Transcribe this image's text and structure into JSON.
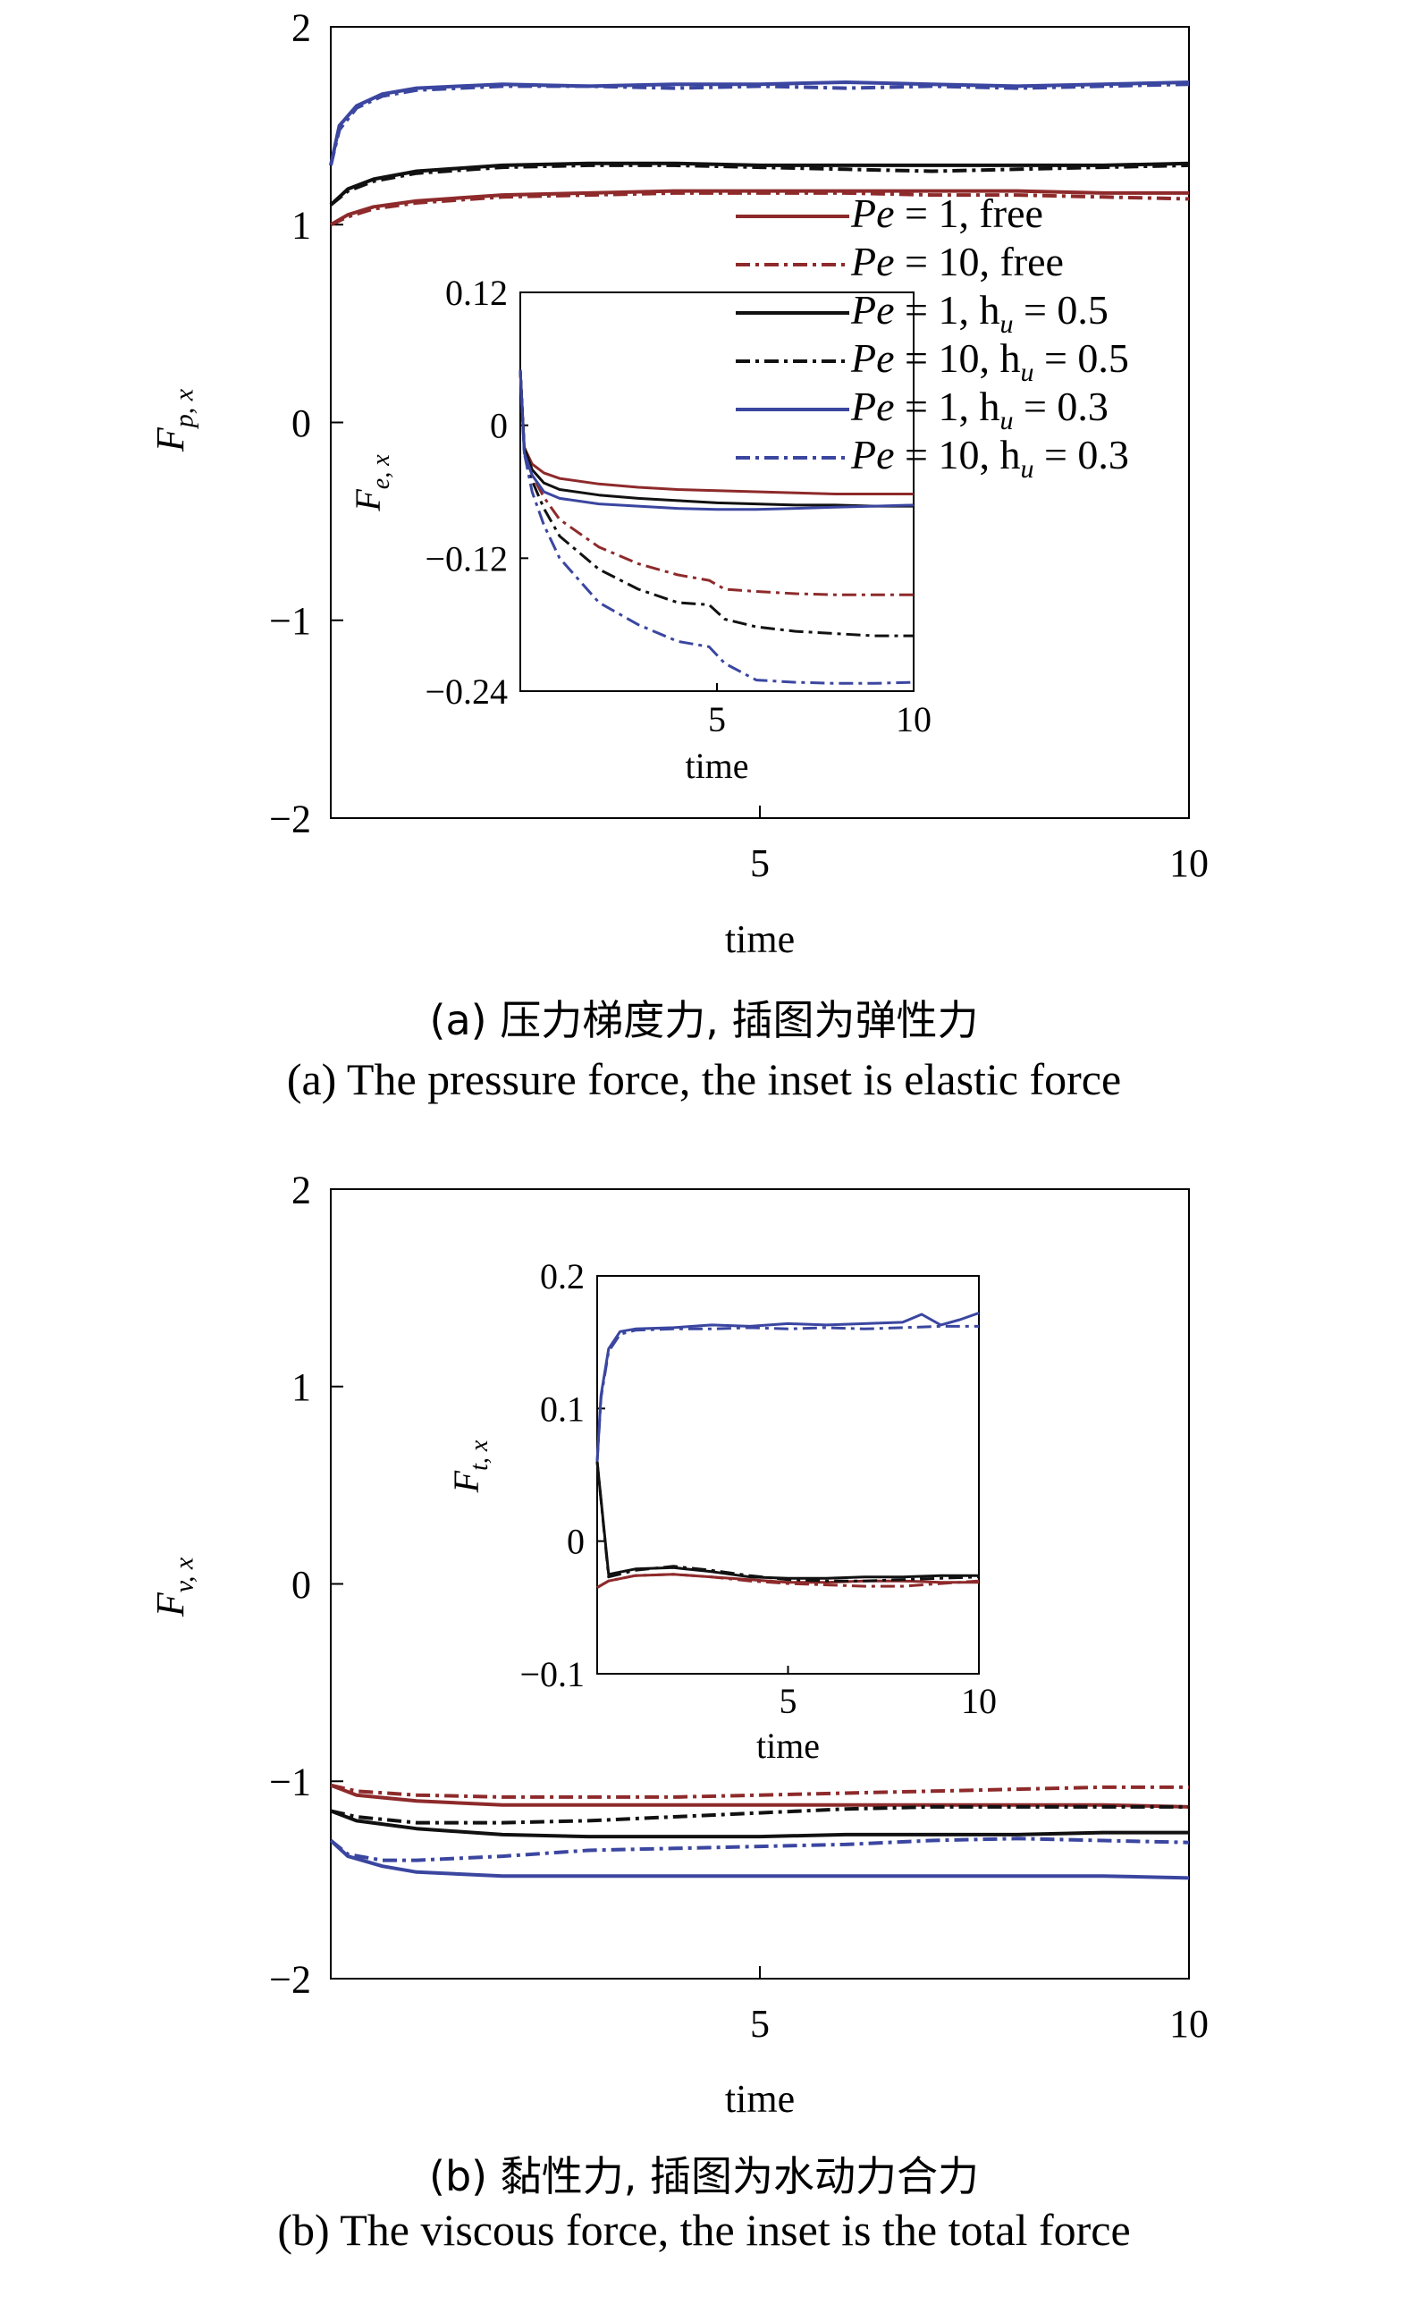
{
  "captions": {
    "a_cn": "(a) 压力梯度力, 插图为弹性力",
    "a_en": "(a) The pressure force, the inset is elastic force",
    "b_cn": "(b) 黏性力, 插图为水动力合力",
    "b_en": "(b) The viscous force, the inset is the total force"
  },
  "legend": [
    {
      "prefix": "Pe",
      "text": " = 1, free",
      "sub": "",
      "tail": "",
      "color": "#8e2a2b",
      "dash": "solid"
    },
    {
      "prefix": "Pe",
      "text": " = 10, free",
      "sub": "",
      "tail": "",
      "color": "#8e2a2b",
      "dash": "dashdot"
    },
    {
      "prefix": "Pe",
      "text": " = 1, h",
      "sub": "u",
      "tail": " = 0.5",
      "color": "#111111",
      "dash": "solid"
    },
    {
      "prefix": "Pe",
      "text": " = 10, h",
      "sub": "u",
      "tail": " = 0.5",
      "color": "#111111",
      "dash": "dashdot"
    },
    {
      "prefix": "Pe",
      "text": " = 1, h",
      "sub": "u",
      "tail": " = 0.3",
      "color": "#3b46a0",
      "dash": "solid"
    },
    {
      "prefix": "Pe",
      "text": " = 10, h",
      "sub": "u",
      "tail": " = 0.3",
      "color": "#3b46a0",
      "dash": "dashdot"
    }
  ],
  "chart_data": [
    {
      "id": "a-main",
      "type": "line",
      "ylabel": "F",
      "ylabel_sub": "p, x",
      "xlabel": "time",
      "xlim": [
        0,
        10
      ],
      "ylim": [
        -2,
        2
      ],
      "xticks": [
        5,
        10
      ],
      "yticks": [
        2,
        1,
        0,
        -1,
        -2
      ],
      "series": [
        {
          "name": "Pe = 1, free",
          "color": "#8e2a2b",
          "dash": "solid",
          "x": [
            0,
            0.2,
            0.5,
            1,
            2,
            3,
            4,
            5,
            6,
            7,
            8,
            9,
            10
          ],
          "y": [
            1.0,
            1.05,
            1.09,
            1.12,
            1.15,
            1.16,
            1.17,
            1.17,
            1.17,
            1.17,
            1.17,
            1.16,
            1.16
          ]
        },
        {
          "name": "Pe = 10, free",
          "color": "#8e2a2b",
          "dash": "dashdot",
          "x": [
            0,
            0.2,
            0.5,
            1,
            2,
            3,
            4,
            5,
            6,
            7,
            8,
            9,
            10
          ],
          "y": [
            1.0,
            1.04,
            1.08,
            1.11,
            1.14,
            1.15,
            1.16,
            1.16,
            1.16,
            1.15,
            1.15,
            1.14,
            1.13
          ]
        },
        {
          "name": "Pe = 1, hu = 0.5",
          "color": "#111111",
          "dash": "solid",
          "x": [
            0,
            0.2,
            0.5,
            1,
            2,
            3,
            4,
            5,
            6,
            7,
            8,
            9,
            10
          ],
          "y": [
            1.1,
            1.18,
            1.23,
            1.27,
            1.3,
            1.31,
            1.31,
            1.3,
            1.3,
            1.3,
            1.3,
            1.3,
            1.31
          ]
        },
        {
          "name": "Pe = 10, hu = 0.5",
          "color": "#111111",
          "dash": "dashdot",
          "x": [
            0,
            0.2,
            0.5,
            1,
            2,
            3,
            4,
            5,
            6,
            7,
            8,
            9,
            10
          ],
          "y": [
            1.1,
            1.17,
            1.22,
            1.26,
            1.29,
            1.3,
            1.3,
            1.29,
            1.28,
            1.27,
            1.28,
            1.29,
            1.3
          ]
        },
        {
          "name": "Pe = 1, hu = 0.3",
          "color": "#3b46a0",
          "dash": "solid",
          "x": [
            0,
            0.1,
            0.3,
            0.6,
            1,
            1.5,
            2,
            3,
            4,
            5,
            6,
            7,
            8,
            9,
            10
          ],
          "y": [
            1.3,
            1.5,
            1.6,
            1.66,
            1.69,
            1.7,
            1.71,
            1.7,
            1.71,
            1.71,
            1.72,
            1.71,
            1.7,
            1.71,
            1.72
          ]
        },
        {
          "name": "Pe = 10, hu = 0.3",
          "color": "#3b46a0",
          "dash": "dashdot",
          "x": [
            0,
            0.1,
            0.3,
            0.6,
            1,
            1.5,
            2,
            3,
            4,
            5,
            6,
            7,
            8,
            9,
            10
          ],
          "y": [
            1.3,
            1.48,
            1.59,
            1.65,
            1.68,
            1.69,
            1.7,
            1.7,
            1.69,
            1.7,
            1.69,
            1.7,
            1.69,
            1.7,
            1.71
          ]
        }
      ]
    },
    {
      "id": "a-inset",
      "type": "line",
      "ylabel": "F",
      "ylabel_sub": "e, x",
      "xlabel": "time",
      "xlim": [
        0,
        10
      ],
      "ylim": [
        -0.24,
        0.12
      ],
      "xticks": [
        5,
        10
      ],
      "yticks": [
        "0.12",
        "0",
        "−0.12",
        "−0.24"
      ],
      "ytick_values": [
        0.12,
        0,
        -0.12,
        -0.24
      ],
      "series": [
        {
          "name": "Pe = 1, free",
          "color": "#8e2a2b",
          "dash": "solid",
          "x": [
            0,
            0.1,
            0.3,
            0.6,
            1,
            2,
            3,
            4,
            5,
            6,
            7,
            8,
            9,
            10
          ],
          "y": [
            0.05,
            -0.02,
            -0.035,
            -0.043,
            -0.048,
            -0.053,
            -0.056,
            -0.058,
            -0.059,
            -0.06,
            -0.061,
            -0.062,
            -0.062,
            -0.062
          ]
        },
        {
          "name": "Pe = 10, free",
          "color": "#8e2a2b",
          "dash": "dashdot",
          "x": [
            0,
            0.1,
            0.3,
            0.6,
            1,
            2,
            3,
            4,
            4.8,
            5.2,
            6,
            7,
            8,
            9,
            10
          ],
          "y": [
            0.05,
            -0.02,
            -0.045,
            -0.065,
            -0.085,
            -0.11,
            -0.125,
            -0.135,
            -0.14,
            -0.148,
            -0.15,
            -0.152,
            -0.153,
            -0.153,
            -0.153
          ]
        },
        {
          "name": "Pe = 1, hu = 0.5",
          "color": "#111111",
          "dash": "solid",
          "x": [
            0,
            0.1,
            0.3,
            0.6,
            1,
            2,
            3,
            4,
            5,
            6,
            7,
            8,
            9,
            10
          ],
          "y": [
            0.05,
            -0.02,
            -0.04,
            -0.052,
            -0.058,
            -0.063,
            -0.066,
            -0.068,
            -0.07,
            -0.071,
            -0.072,
            -0.072,
            -0.073,
            -0.073
          ]
        },
        {
          "name": "Pe = 10, hu = 0.5",
          "color": "#111111",
          "dash": "dashdot",
          "x": [
            0,
            0.1,
            0.3,
            0.6,
            1,
            2,
            3,
            4,
            4.8,
            5.2,
            6,
            7,
            8,
            9,
            10
          ],
          "y": [
            0.05,
            -0.02,
            -0.05,
            -0.075,
            -0.1,
            -0.13,
            -0.148,
            -0.16,
            -0.162,
            -0.175,
            -0.182,
            -0.186,
            -0.188,
            -0.19,
            -0.19
          ]
        },
        {
          "name": "Pe = 1, hu = 0.3",
          "color": "#3b46a0",
          "dash": "solid",
          "x": [
            0,
            0.1,
            0.3,
            0.6,
            1,
            2,
            3,
            4,
            5,
            6,
            7,
            8,
            9,
            10
          ],
          "y": [
            0.05,
            -0.025,
            -0.045,
            -0.06,
            -0.066,
            -0.071,
            -0.073,
            -0.075,
            -0.076,
            -0.076,
            -0.075,
            -0.074,
            -0.073,
            -0.072
          ]
        },
        {
          "name": "Pe = 10, hu = 0.3",
          "color": "#3b46a0",
          "dash": "dashdot",
          "x": [
            0,
            0.1,
            0.3,
            0.6,
            1,
            2,
            3,
            4,
            4.8,
            5.2,
            6,
            7,
            8,
            9,
            10
          ],
          "y": [
            0.05,
            -0.025,
            -0.06,
            -0.09,
            -0.12,
            -0.16,
            -0.18,
            -0.195,
            -0.2,
            -0.215,
            -0.23,
            -0.232,
            -0.233,
            -0.233,
            -0.232
          ]
        }
      ]
    },
    {
      "id": "b-main",
      "type": "line",
      "ylabel": "F",
      "ylabel_sub": "v, x",
      "xlabel": "time",
      "xlim": [
        0,
        10
      ],
      "ylim": [
        -2,
        2
      ],
      "xticks": [
        5,
        10
      ],
      "yticks": [
        2,
        1,
        0,
        -1,
        -2
      ],
      "series": [
        {
          "name": "Pe = 1, free",
          "color": "#8e2a2b",
          "dash": "solid",
          "x": [
            0,
            0.3,
            1,
            2,
            3,
            4,
            5,
            6,
            7,
            8,
            9,
            10
          ],
          "y": [
            -1.02,
            -1.07,
            -1.1,
            -1.12,
            -1.12,
            -1.12,
            -1.12,
            -1.12,
            -1.12,
            -1.12,
            -1.12,
            -1.13
          ]
        },
        {
          "name": "Pe = 10, free",
          "color": "#8e2a2b",
          "dash": "dashdot",
          "x": [
            0,
            0.3,
            1,
            2,
            3,
            4,
            5,
            6,
            7,
            8,
            9,
            10
          ],
          "y": [
            -1.02,
            -1.05,
            -1.07,
            -1.08,
            -1.08,
            -1.08,
            -1.07,
            -1.06,
            -1.05,
            -1.04,
            -1.03,
            -1.03
          ]
        },
        {
          "name": "Pe = 1, hu = 0.5",
          "color": "#111111",
          "dash": "solid",
          "x": [
            0,
            0.3,
            1,
            2,
            3,
            4,
            5,
            6,
            7,
            8,
            9,
            10
          ],
          "y": [
            -1.15,
            -1.2,
            -1.24,
            -1.27,
            -1.28,
            -1.28,
            -1.28,
            -1.27,
            -1.27,
            -1.27,
            -1.26,
            -1.26
          ]
        },
        {
          "name": "Pe = 10, hu = 0.5",
          "color": "#111111",
          "dash": "dashdot",
          "x": [
            0,
            0.3,
            1,
            2,
            3,
            4,
            5,
            6,
            7,
            8,
            9,
            10
          ],
          "y": [
            -1.15,
            -1.18,
            -1.21,
            -1.21,
            -1.2,
            -1.18,
            -1.16,
            -1.14,
            -1.13,
            -1.13,
            -1.13,
            -1.13
          ]
        },
        {
          "name": "Pe = 1, hu = 0.3",
          "color": "#3b46a0",
          "dash": "solid",
          "x": [
            0,
            0.2,
            0.6,
            1,
            2,
            3,
            4,
            5,
            6,
            7,
            8,
            9,
            10
          ],
          "y": [
            -1.3,
            -1.38,
            -1.43,
            -1.46,
            -1.48,
            -1.48,
            -1.48,
            -1.48,
            -1.48,
            -1.48,
            -1.48,
            -1.48,
            -1.49
          ]
        },
        {
          "name": "Pe = 10, hu = 0.3",
          "color": "#3b46a0",
          "dash": "dashdot",
          "x": [
            0,
            0.2,
            0.6,
            1,
            2,
            3,
            4,
            5,
            6,
            7,
            8,
            9,
            10
          ],
          "y": [
            -1.3,
            -1.37,
            -1.4,
            -1.4,
            -1.38,
            -1.35,
            -1.34,
            -1.33,
            -1.32,
            -1.3,
            -1.29,
            -1.3,
            -1.31
          ]
        }
      ]
    },
    {
      "id": "b-inset",
      "type": "line",
      "ylabel": "F",
      "ylabel_sub": "t, x",
      "xlabel": "time",
      "xlim": [
        0,
        10
      ],
      "ylim": [
        -0.1,
        0.2
      ],
      "xticks": [
        5,
        10
      ],
      "yticks": [
        "0.2",
        "0.1",
        "0",
        "−0.1"
      ],
      "ytick_values": [
        0.2,
        0.1,
        0,
        -0.1
      ],
      "series": [
        {
          "name": "Pe = 1, free",
          "color": "#8e2a2b",
          "dash": "solid",
          "x": [
            0,
            0.3,
            1,
            2,
            3,
            4,
            5,
            6,
            7,
            8,
            9,
            10
          ],
          "y": [
            -0.035,
            -0.03,
            -0.026,
            -0.025,
            -0.027,
            -0.029,
            -0.031,
            -0.031,
            -0.03,
            -0.03,
            -0.031,
            -0.031
          ]
        },
        {
          "name": "Pe = 10, free",
          "color": "#8e2a2b",
          "dash": "dashdot",
          "x": [
            0,
            0.3,
            1,
            2,
            3,
            4,
            5,
            6,
            7,
            8,
            9,
            10
          ],
          "y": [
            -0.035,
            -0.03,
            -0.026,
            -0.025,
            -0.027,
            -0.03,
            -0.032,
            -0.033,
            -0.034,
            -0.034,
            -0.032,
            -0.03
          ]
        },
        {
          "name": "Pe = 1, hu = 0.5",
          "color": "#111111",
          "dash": "solid",
          "x": [
            0,
            0.3,
            1,
            2,
            3,
            4,
            5,
            6,
            7,
            8,
            9,
            10
          ],
          "y": [
            0.06,
            -0.025,
            -0.021,
            -0.02,
            -0.023,
            -0.027,
            -0.028,
            -0.028,
            -0.027,
            -0.027,
            -0.026,
            -0.026
          ]
        },
        {
          "name": "Pe = 10, hu = 0.5",
          "color": "#111111",
          "dash": "dashdot",
          "x": [
            0,
            0.3,
            1,
            2,
            3,
            4,
            5,
            6,
            7,
            8,
            9,
            10
          ],
          "y": [
            0.06,
            -0.027,
            -0.022,
            -0.019,
            -0.022,
            -0.026,
            -0.029,
            -0.03,
            -0.03,
            -0.029,
            -0.028,
            -0.027
          ]
        },
        {
          "name": "Pe = 1, hu = 0.3",
          "color": "#3b46a0",
          "dash": "solid",
          "x": [
            0,
            0.1,
            0.3,
            0.6,
            1,
            2,
            3,
            4,
            5,
            6,
            7,
            8,
            8.5,
            9,
            9.5,
            10
          ],
          "y": [
            0.06,
            0.11,
            0.145,
            0.158,
            0.16,
            0.161,
            0.163,
            0.162,
            0.164,
            0.163,
            0.164,
            0.165,
            0.171,
            0.163,
            0.167,
            0.172
          ]
        },
        {
          "name": "Pe = 10, hu = 0.3",
          "color": "#3b46a0",
          "dash": "dashdot",
          "x": [
            0,
            0.1,
            0.3,
            0.6,
            1,
            2,
            3,
            4,
            5,
            6,
            7,
            8,
            9,
            10
          ],
          "y": [
            0.06,
            0.108,
            0.143,
            0.156,
            0.159,
            0.16,
            0.16,
            0.161,
            0.16,
            0.161,
            0.16,
            0.161,
            0.162,
            0.162
          ]
        }
      ]
    }
  ]
}
